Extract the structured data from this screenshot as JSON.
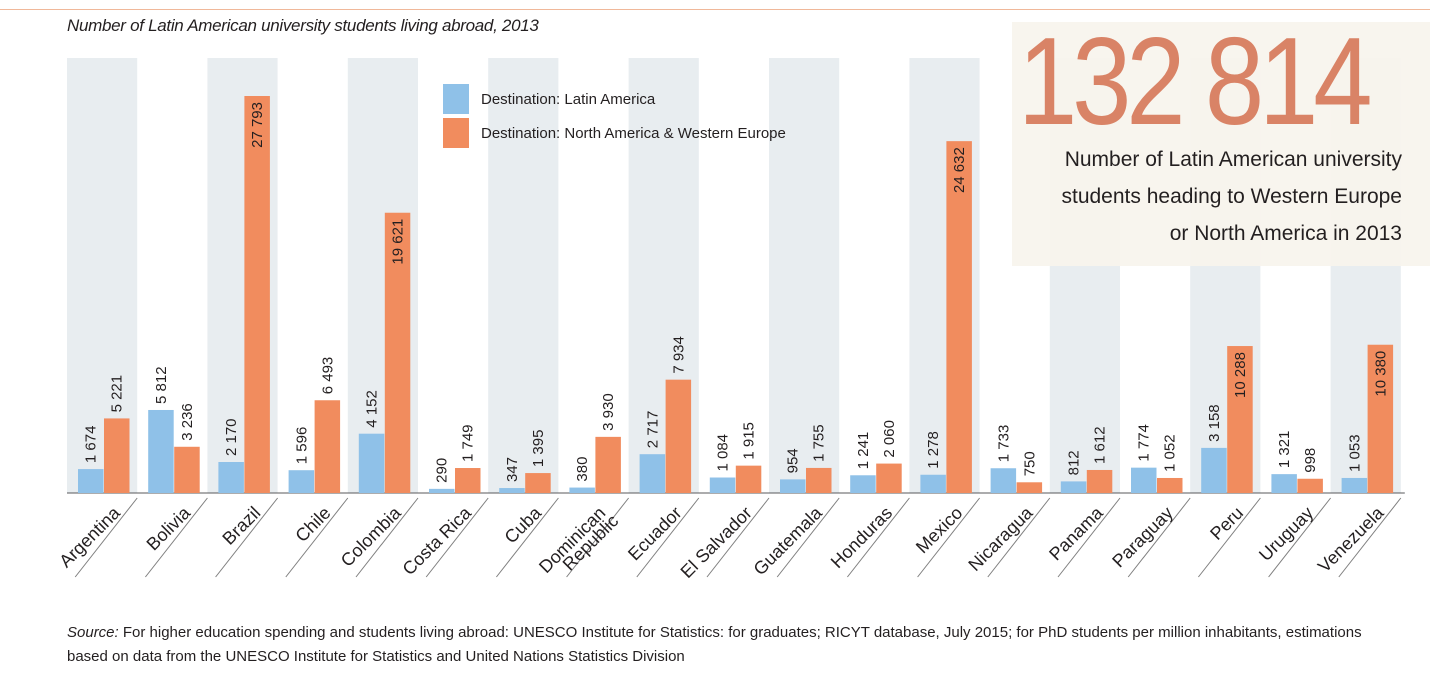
{
  "header": {
    "title": "Number of Latin American university students living abroad, 2013"
  },
  "callout": {
    "number": "132 814",
    "lines": [
      "Number of Latin American university",
      "students heading to Western Europe",
      "or North America in 2013"
    ]
  },
  "legend": {
    "items": [
      {
        "label": "Destination: Latin America",
        "color": "#8fc1e8"
      },
      {
        "label": "Destination: North America & Western Europe",
        "color": "#f18c5e"
      }
    ]
  },
  "source": {
    "label": "Source:",
    "text": " For higher education spending and students living abroad: UNESCO Institute for Statistics: for graduates; RICYT database, July 2015; for PhD students per million inhabitants, estimations based on data from the UNESCO Institute for Statistics and United Nations Statistics Division"
  },
  "chart_data": {
    "type": "bar",
    "title": "Number of Latin American university students living abroad, 2013",
    "categories": [
      "Argentina",
      "Bolivia",
      "Brazil",
      "Chile",
      "Colombia",
      "Costa Rica",
      "Cuba",
      "Dominican Republic",
      "Ecuador",
      "El Salvador",
      "Guatemala",
      "Honduras",
      "Mexico",
      "Nicaragua",
      "Panama",
      "Paraguay",
      "Peru",
      "Uruguay",
      "Venezuela"
    ],
    "series": [
      {
        "name": "Destination: Latin America",
        "color": "#8fc1e8",
        "values": [
          1674,
          5812,
          2170,
          1596,
          4152,
          290,
          347,
          380,
          2717,
          1084,
          954,
          1241,
          1278,
          1733,
          812,
          1774,
          3158,
          1321,
          1053
        ],
        "labels": [
          "1 674",
          "5 812",
          "2 170",
          "1 596",
          "4 152",
          "290",
          "347",
          "380",
          "2 717",
          "1 084",
          "954",
          "1 241",
          "1 278",
          "1 733",
          "812",
          "1 774",
          "3 158",
          "1 321",
          "1 053"
        ]
      },
      {
        "name": "Destination: North America & Western Europe",
        "color": "#f18c5e",
        "values": [
          5221,
          3236,
          27793,
          6493,
          19621,
          1749,
          1395,
          3930,
          7934,
          1915,
          1755,
          2060,
          24632,
          750,
          1612,
          1052,
          10288,
          998,
          10380
        ],
        "labels": [
          "5 221",
          "3 236",
          "27 793",
          "6 493",
          "19 621",
          "1 749",
          "1 395",
          "3 930",
          "7 934",
          "1 915",
          "1 755",
          "2 060",
          "24 632",
          "750",
          "1 612",
          "1 052",
          "10 288",
          "998",
          "10 380"
        ]
      }
    ],
    "ylim": [
      0,
      28000
    ],
    "legend_position": "top-center",
    "grid": false,
    "bands": "alternating"
  }
}
